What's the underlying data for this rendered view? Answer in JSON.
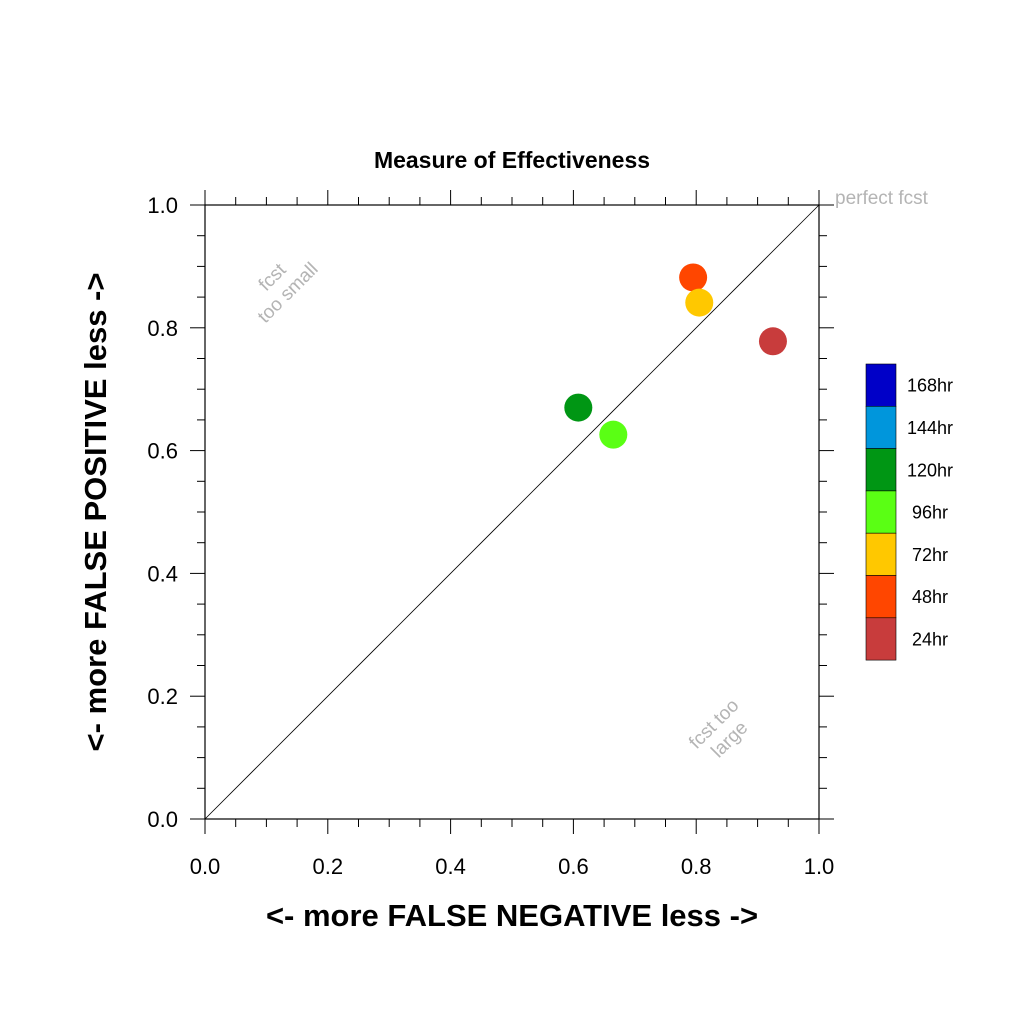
{
  "chart_data": {
    "type": "scatter",
    "title": "Measure of Effectiveness",
    "xlabel": "<- more   FALSE NEGATIVE   less ->",
    "ylabel": "<- more   FALSE POSITIVE   less ->",
    "xlim": [
      0,
      1
    ],
    "ylim": [
      0,
      1
    ],
    "xticks": [
      "0.0",
      "0.2",
      "0.4",
      "0.6",
      "0.8",
      "1.0"
    ],
    "yticks": [
      "0.0",
      "0.2",
      "0.4",
      "0.6",
      "0.8",
      "1.0"
    ],
    "grid": false,
    "reference_line": "y = x",
    "annotations": {
      "perfect": "perfect fcst",
      "small_line1": "fcst",
      "small_line2": "too small",
      "large_line1": "fcst too",
      "large_line2": "large"
    },
    "legend": {
      "placement": "right",
      "entries": [
        {
          "label": "168hr",
          "color": "#0000c8"
        },
        {
          "label": "144hr",
          "color": "#0096dc"
        },
        {
          "label": "120hr",
          "color": "#009614"
        },
        {
          "label": "96hr",
          "color": "#5aff14"
        },
        {
          "label": "72hr",
          "color": "#ffc800"
        },
        {
          "label": "48hr",
          "color": "#ff4600"
        },
        {
          "label": "24hr",
          "color": "#c83c3c"
        }
      ]
    },
    "series": [
      {
        "name": "24hr",
        "color": "#c83c3c",
        "x": 0.925,
        "y": 0.778
      },
      {
        "name": "48hr",
        "color": "#ff4600",
        "x": 0.795,
        "y": 0.882
      },
      {
        "name": "72hr",
        "color": "#ffc800",
        "x": 0.805,
        "y": 0.841
      },
      {
        "name": "96hr",
        "color": "#5aff14",
        "x": 0.665,
        "y": 0.626
      },
      {
        "name": "120hr",
        "color": "#009614",
        "x": 0.608,
        "y": 0.67
      }
    ]
  }
}
